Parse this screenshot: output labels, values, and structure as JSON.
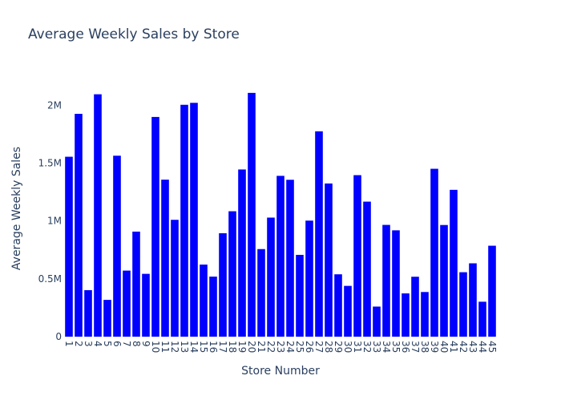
{
  "chart_data": {
    "type": "bar",
    "title": "Average Weekly Sales by Store",
    "xlabel": "Store Number",
    "ylabel": "Average Weekly Sales",
    "categories": [
      "1",
      "2",
      "3",
      "4",
      "5",
      "6",
      "7",
      "8",
      "9",
      "10",
      "11",
      "12",
      "13",
      "14",
      "15",
      "16",
      "17",
      "18",
      "19",
      "20",
      "21",
      "22",
      "23",
      "24",
      "25",
      "26",
      "27",
      "28",
      "29",
      "30",
      "31",
      "32",
      "33",
      "34",
      "35",
      "36",
      "37",
      "38",
      "39",
      "40",
      "41",
      "42",
      "43",
      "44",
      "45"
    ],
    "values": [
      1555000,
      1926000,
      402000,
      2095000,
      318000,
      1564000,
      571000,
      908000,
      543000,
      1899000,
      1357000,
      1010000,
      2004000,
      2021000,
      623000,
      519000,
      894000,
      1084000,
      1445000,
      2107000,
      757000,
      1029000,
      1390000,
      1356000,
      707000,
      1003000,
      1775000,
      1324000,
      539000,
      439000,
      1396000,
      1167000,
      260000,
      966000,
      919000,
      374000,
      518000,
      386000,
      1451000,
      965000,
      1269000,
      557000,
      634000,
      302000,
      786000
    ],
    "yticks": [
      0,
      500000,
      1000000,
      1500000,
      2000000
    ],
    "ytick_labels": [
      "0",
      "0.5M",
      "1M",
      "1.5M",
      "2M"
    ],
    "ylim": [
      0,
      2217000
    ],
    "bar_color": "#0000ff",
    "grid": false,
    "legend": "none"
  }
}
